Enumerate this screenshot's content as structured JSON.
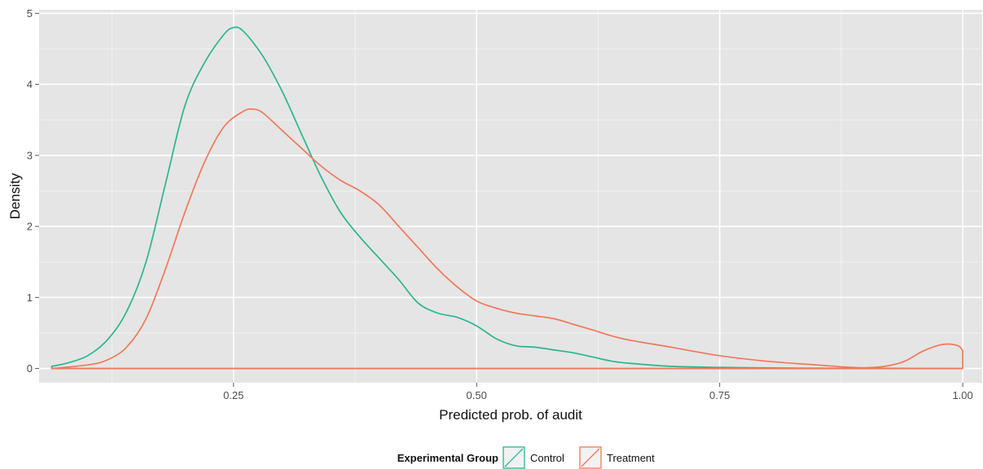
{
  "chart_data": {
    "type": "line",
    "title": "",
    "xlabel": "Predicted prob. of audit",
    "ylabel": "Density",
    "xlim": [
      0.05,
      1.02
    ],
    "ylim": [
      -0.2,
      5.05
    ],
    "xticks": [
      0.25,
      0.5,
      0.75,
      1.0
    ],
    "xtick_labels": [
      "0.25",
      "0.50",
      "0.75",
      "1.00"
    ],
    "yticks": [
      0,
      1,
      2,
      3,
      4,
      5
    ],
    "ytick_labels": [
      "0",
      "1",
      "2",
      "3",
      "4",
      "5"
    ],
    "grid": true,
    "background": "#e5e5e5",
    "legend": {
      "title": "Experimental Group",
      "position": "bottom"
    },
    "series": [
      {
        "name": "Control",
        "color": "#2bb58f",
        "x": [
          0.063,
          0.08,
          0.1,
          0.12,
          0.14,
          0.16,
          0.18,
          0.2,
          0.22,
          0.24,
          0.25,
          0.26,
          0.28,
          0.3,
          0.32,
          0.34,
          0.36,
          0.38,
          0.4,
          0.42,
          0.44,
          0.46,
          0.48,
          0.5,
          0.52,
          0.54,
          0.56,
          0.58,
          0.6,
          0.62,
          0.64,
          0.66,
          0.7,
          0.75,
          0.8,
          0.85,
          0.9,
          0.95,
          0.999
        ],
        "y": [
          0.03,
          0.08,
          0.18,
          0.4,
          0.8,
          1.5,
          2.6,
          3.7,
          4.3,
          4.7,
          4.8,
          4.75,
          4.4,
          3.9,
          3.3,
          2.7,
          2.2,
          1.85,
          1.55,
          1.25,
          0.92,
          0.78,
          0.72,
          0.6,
          0.42,
          0.32,
          0.3,
          0.26,
          0.22,
          0.16,
          0.1,
          0.07,
          0.03,
          0.015,
          0.008,
          0.004,
          0.002,
          0.001,
          0.0
        ]
      },
      {
        "name": "Treatment",
        "color": "#f0785a",
        "x": [
          0.063,
          0.1,
          0.12,
          0.14,
          0.16,
          0.18,
          0.2,
          0.22,
          0.24,
          0.26,
          0.27,
          0.28,
          0.3,
          0.32,
          0.34,
          0.36,
          0.38,
          0.4,
          0.42,
          0.44,
          0.46,
          0.48,
          0.5,
          0.52,
          0.54,
          0.56,
          0.58,
          0.6,
          0.62,
          0.65,
          0.7,
          0.75,
          0.8,
          0.85,
          0.88,
          0.9,
          0.92,
          0.94,
          0.96,
          0.98,
          0.995,
          1.0
        ],
        "y": [
          0.0,
          0.05,
          0.12,
          0.3,
          0.7,
          1.4,
          2.2,
          2.9,
          3.4,
          3.62,
          3.65,
          3.6,
          3.35,
          3.1,
          2.85,
          2.65,
          2.5,
          2.3,
          2.0,
          1.7,
          1.4,
          1.15,
          0.95,
          0.85,
          0.78,
          0.74,
          0.7,
          0.62,
          0.54,
          0.42,
          0.3,
          0.18,
          0.1,
          0.05,
          0.02,
          0.01,
          0.03,
          0.1,
          0.25,
          0.34,
          0.32,
          0.25
        ]
      }
    ]
  }
}
